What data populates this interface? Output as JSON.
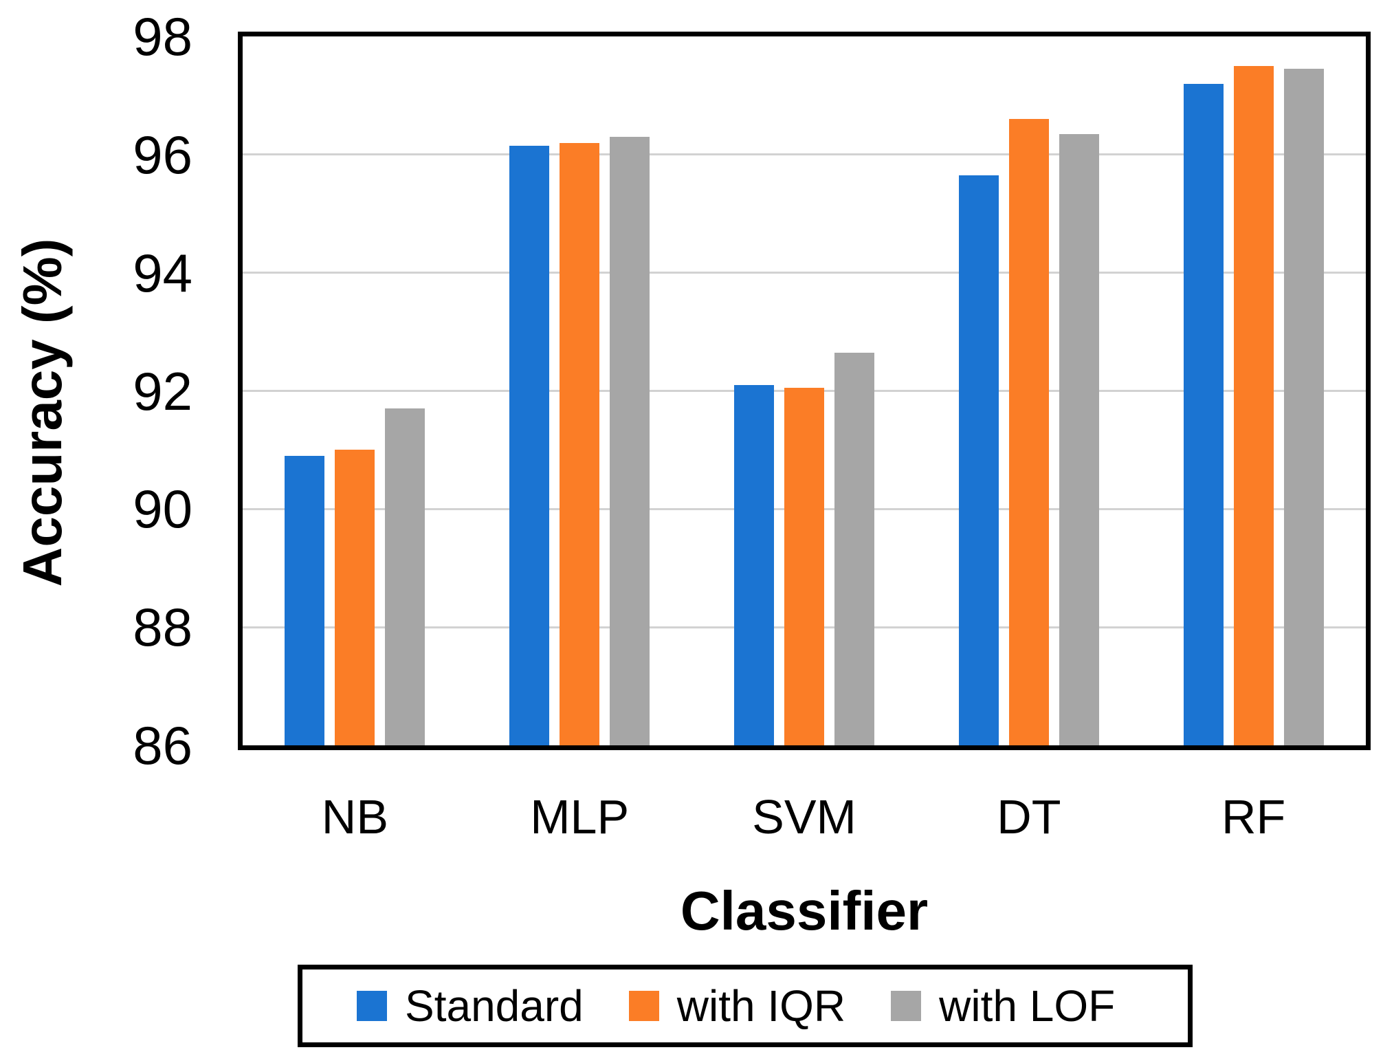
{
  "figure": {
    "background_color": "#FFFFFF",
    "axis_frame_color": "#000000",
    "gridline_color": "#D2D2D2",
    "text_color": "#000000"
  },
  "chart_data": {
    "type": "bar",
    "title": "",
    "xlabel": "Classifier",
    "ylabel": "Accuracy (%)",
    "categories": [
      "NB",
      "MLP",
      "SVM",
      "DT",
      "RF"
    ],
    "series": [
      {
        "name": "Standard",
        "color": "#1B74D2",
        "values": [
          90.9,
          96.15,
          92.1,
          95.65,
          97.2
        ]
      },
      {
        "name": "with IQR",
        "color": "#FB7D26",
        "values": [
          91.0,
          96.2,
          92.05,
          96.6,
          97.5
        ]
      },
      {
        "name": "with LOF",
        "color": "#A6A6A6",
        "values": [
          91.7,
          96.3,
          92.65,
          96.35,
          97.45
        ]
      }
    ],
    "ylim": [
      86,
      98
    ],
    "yticks": [
      86,
      88,
      90,
      92,
      94,
      96,
      98
    ],
    "ytick_step": 2,
    "grid": true,
    "legend_position": "bottom"
  }
}
